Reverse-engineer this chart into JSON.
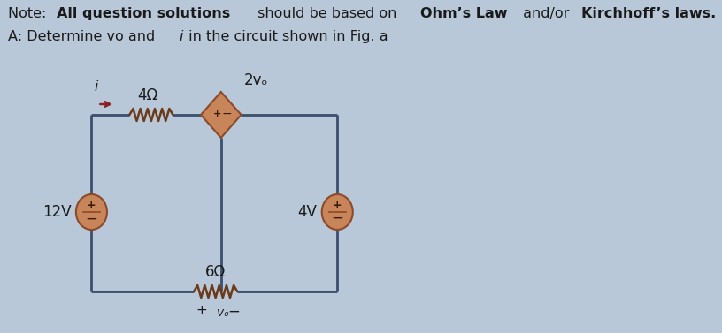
{
  "bg_color": "#b8c8d8",
  "note_line1_parts": [
    [
      "Note: ",
      "normal"
    ],
    [
      "All question solutions",
      "bold"
    ],
    [
      " should be based on ",
      "normal"
    ],
    [
      "Ohm’s Law",
      "bold"
    ],
    [
      " and/or ",
      "normal"
    ],
    [
      "Kirchhoff’s laws.",
      "bold"
    ]
  ],
  "note_line2_parts": [
    [
      "A: Determine vo and ",
      "normal"
    ],
    [
      "i",
      "italic"
    ],
    [
      " in the circuit shown in Fig. a",
      "normal"
    ]
  ],
  "label_4ohm": "4Ω",
  "label_6ohm": "6Ω",
  "label_2vo": "2vₒ",
  "label_12v": "12V",
  "label_4v": "4V",
  "label_i": "i",
  "wire_color": "#3a4f6e",
  "source_fill": "#c8855a",
  "source_edge": "#8b4a2a",
  "diamond_fill": "#c8855a",
  "diamond_edge": "#8b4a2a",
  "arrow_color": "#8b2020",
  "resistor_color": "#6b3a1a",
  "text_color": "#1a1a1a",
  "font_size": 11.5
}
